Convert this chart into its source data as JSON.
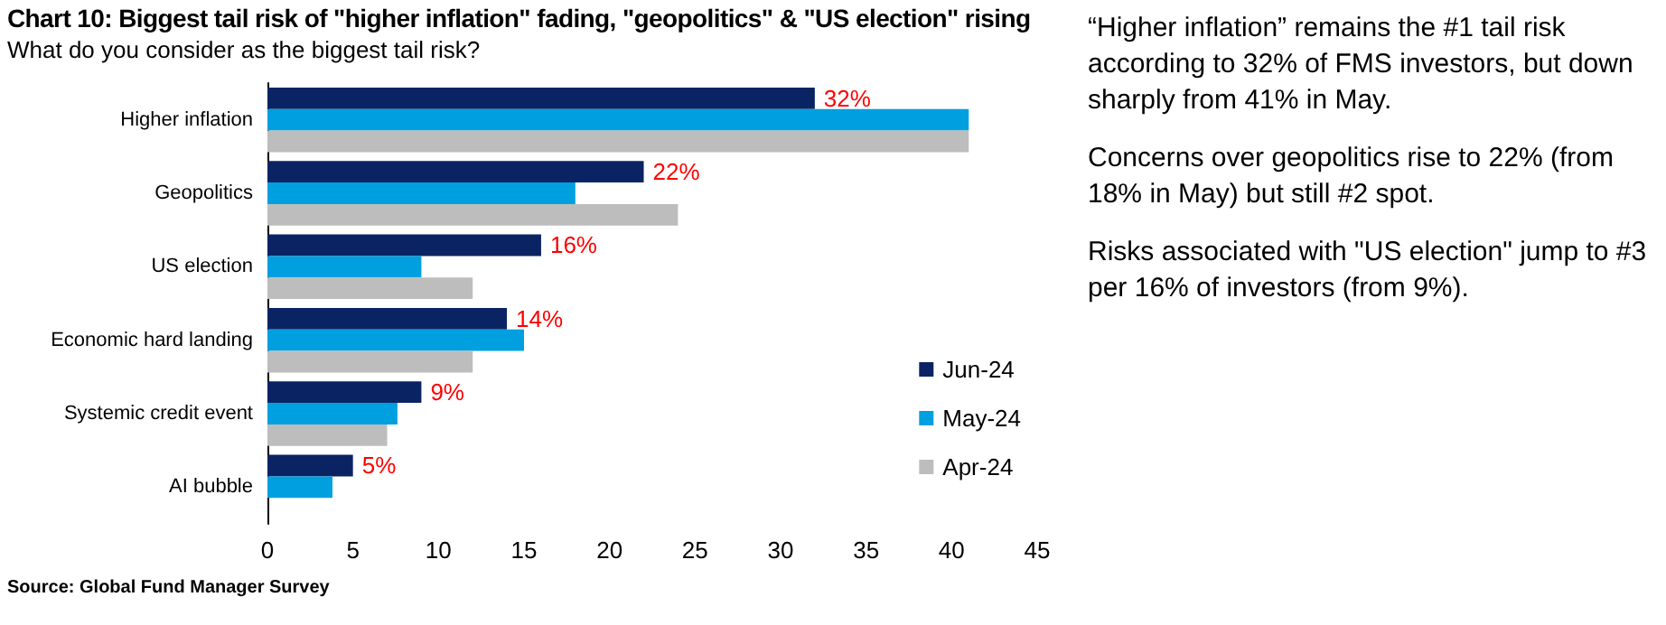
{
  "chart_data": {
    "type": "bar",
    "orientation": "horizontal",
    "title": "Chart 10: Biggest tail risk of \"higher inflation\" fading, \"geopolitics\" & \"US election\" rising",
    "subtitle": "What do you consider as the biggest tail risk?",
    "categories": [
      "Higher inflation",
      "Geopolitics",
      "US election",
      "Economic hard landing",
      "Systemic credit event",
      "AI bubble"
    ],
    "series": [
      {
        "name": "Jun-24",
        "color": "#0a2463",
        "values": [
          32,
          22,
          16,
          14,
          9,
          5
        ],
        "value_labels": [
          "32%",
          "22%",
          "16%",
          "14%",
          "9%",
          "5%"
        ]
      },
      {
        "name": "May-24",
        "color": "#009fdf",
        "values": [
          41,
          18,
          9,
          15,
          7.6,
          3.8
        ]
      },
      {
        "name": "Apr-24",
        "color": "#bdbdbd",
        "values": [
          41,
          24,
          12,
          12,
          7,
          null
        ]
      }
    ],
    "xlim": [
      0,
      45
    ],
    "xticks": [
      0,
      5,
      10,
      15,
      20,
      25,
      30,
      35,
      40,
      45
    ],
    "grid": false,
    "legend": "bottom right",
    "annotations": [
      "Source: Global Fund Manager Survey",
      "“Higher inflation” remains the #1 tail risk according to 32% of FMS investors, but down sharply from 41% in May.",
      "Concerns over geopolitics rise to 22% (from 18% in May) but still #2 spot.",
      "Risks associated with \"US election\" jump to #3 per 16% of investors (from 9%)."
    ]
  }
}
